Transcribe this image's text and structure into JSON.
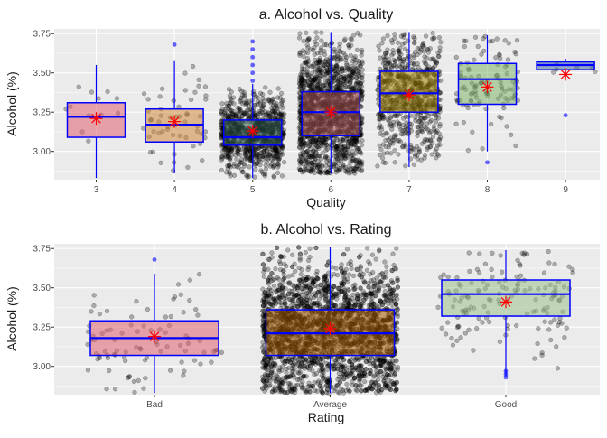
{
  "colors": {
    "panel_bg": "#ebebeb",
    "grid": "#ffffff",
    "box_line": "#0000ff",
    "mean_marker": "#ff0000",
    "point": "#000000"
  },
  "chart_data": [
    {
      "type": "box",
      "title": "a. Alcohol vs. Quality",
      "xlabel": "Quality",
      "ylabel": "Alcohol (%)",
      "categories": [
        "3",
        "4",
        "5",
        "6",
        "7",
        "8",
        "9"
      ],
      "yticks": [
        "3.00",
        "3.25",
        "3.50",
        "3.75"
      ],
      "ytick_values": [
        3.0,
        3.25,
        3.5,
        3.75
      ],
      "ylim": [
        2.82,
        3.78
      ],
      "grid": true,
      "boxes": [
        {
          "category": "3",
          "q1": 3.09,
          "median": 3.22,
          "q3": 3.31,
          "whisker_low": 2.83,
          "whisker_high": 3.55,
          "mean": 3.21,
          "fill": "#e06070",
          "outliers": []
        },
        {
          "category": "4",
          "q1": 3.06,
          "median": 3.17,
          "q3": 3.27,
          "whisker_low": 2.86,
          "whisker_high": 3.58,
          "mean": 3.19,
          "fill": "#d08a3a",
          "outliers": [
            3.68
          ]
        },
        {
          "category": "5",
          "q1": 3.04,
          "median": 3.09,
          "q3": 3.2,
          "whisker_low": 2.83,
          "whisker_high": 3.43,
          "mean": 3.13,
          "fill": "#2f5c50",
          "outliers": [
            3.45,
            3.5,
            3.55,
            3.6,
            3.65,
            3.7
          ]
        },
        {
          "category": "6",
          "q1": 3.1,
          "median": 3.25,
          "q3": 3.38,
          "whisker_low": 2.86,
          "whisker_high": 3.76,
          "mean": 3.25,
          "fill": "#b05a5a",
          "outliers": []
        },
        {
          "category": "7",
          "q1": 3.25,
          "median": 3.37,
          "q3": 3.51,
          "whisker_low": 2.9,
          "whisker_high": 3.76,
          "mean": 3.36,
          "fill": "#a08200",
          "outliers": []
        },
        {
          "category": "8",
          "q1": 3.3,
          "median": 3.46,
          "q3": 3.56,
          "whisker_low": 3.0,
          "whisker_high": 3.74,
          "mean": 3.41,
          "fill": "#7fb56e",
          "outliers": [
            2.93
          ]
        },
        {
          "category": "9",
          "q1": 3.52,
          "median": 3.55,
          "q3": 3.57,
          "whisker_low": 3.5,
          "whisker_high": 3.59,
          "mean": 3.49,
          "fill": "#4a6ea0",
          "outliers": [
            3.23
          ]
        }
      ]
    },
    {
      "type": "box",
      "title": "b. Alcohol vs. Rating",
      "xlabel": "Rating",
      "ylabel": "Alcohol (%)",
      "categories": [
        "Bad",
        "Average",
        "Good"
      ],
      "yticks": [
        "3.00",
        "3.25",
        "3.50",
        "3.75"
      ],
      "ytick_values": [
        3.0,
        3.25,
        3.5,
        3.75
      ],
      "ylim": [
        2.82,
        3.78
      ],
      "grid": true,
      "boxes": [
        {
          "category": "Bad",
          "q1": 3.07,
          "median": 3.18,
          "q3": 3.29,
          "whisker_low": 2.83,
          "whisker_high": 3.59,
          "mean": 3.19,
          "fill": "#e06070",
          "outliers": [
            3.68
          ]
        },
        {
          "category": "Average",
          "q1": 3.07,
          "median": 3.21,
          "q3": 3.36,
          "whisker_low": 2.83,
          "whisker_high": 3.76,
          "mean": 3.24,
          "fill": "#a85a00",
          "outliers": []
        },
        {
          "category": "Good",
          "q1": 3.32,
          "median": 3.46,
          "q3": 3.55,
          "whisker_low": 2.94,
          "whisker_high": 3.74,
          "mean": 3.41,
          "fill": "#9bc08a",
          "outliers": [
            2.93,
            2.95,
            2.97
          ]
        }
      ]
    }
  ]
}
